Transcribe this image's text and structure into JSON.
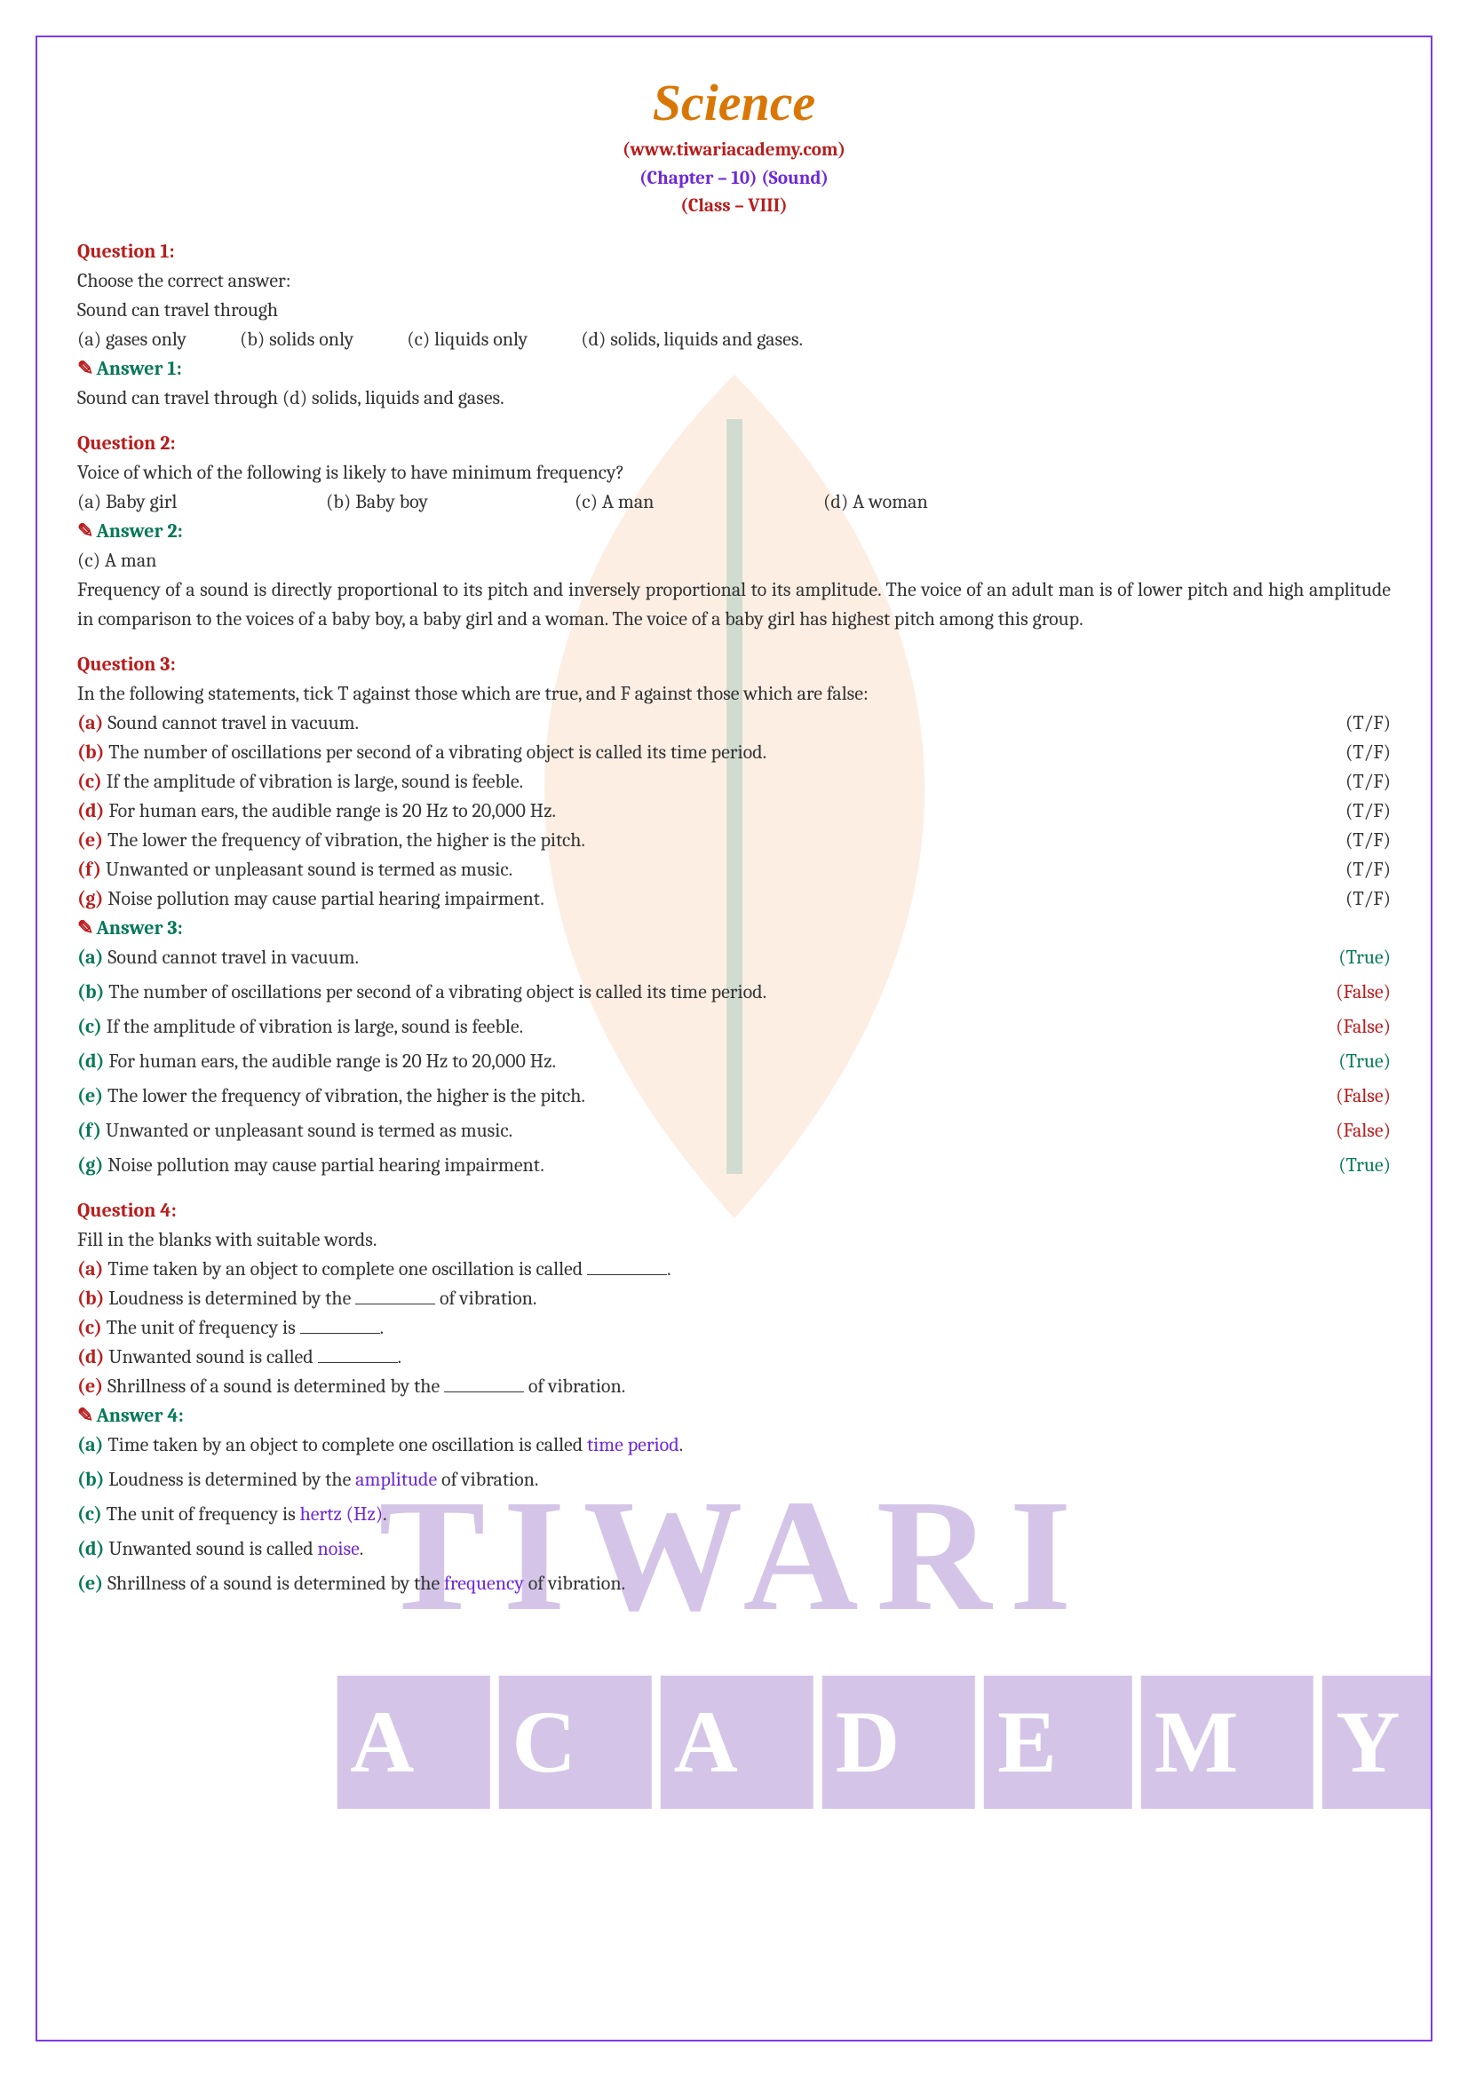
{
  "header": {
    "title": "Science",
    "site": "(www.tiwariacademy.com)",
    "chapter": "(Chapter – 10) (Sound)",
    "class": "(Class – VIII)"
  },
  "q1": {
    "label": "Question 1:",
    "prompt": "Choose the correct answer:",
    "stem": "Sound can travel through",
    "opts": {
      "a": "(a) gases only",
      "b": "(b) solids only",
      "c": "(c) liquids only",
      "d": "(d) solids, liquids and gases."
    },
    "ansLabel": "Answer 1:",
    "ans": "Sound can travel through (d) solids, liquids and gases."
  },
  "q2": {
    "label": "Question 2:",
    "stem": "Voice of which of the following is likely to have minimum frequency?",
    "opts": {
      "a": "(a) Baby girl",
      "b": "(b) Baby boy",
      "c": "(c) A man",
      "d": "(d) A woman"
    },
    "ansLabel": "Answer 2:",
    "ans1": "(c) A man",
    "ans2": "Frequency of a sound is directly proportional to its pitch and inversely proportional to its amplitude. The voice of an adult man is of lower pitch and high amplitude in comparison to the voices of a baby boy, a baby girl and a woman. The voice of a baby girl has highest pitch among this group."
  },
  "q3": {
    "label": "Question 3:",
    "stem": "In the following statements, tick T against those which are true, and F against those which are false:",
    "items": [
      {
        "l": "(a)",
        "t": " Sound cannot travel in vacuum.",
        "tf": "(T/F)",
        "ans": "(True)",
        "cls": "true"
      },
      {
        "l": "(b)",
        "t": " The number of oscillations per second of a vibrating object is called its time period.",
        "tf": "(T/F)",
        "ans": "(False)",
        "cls": "false"
      },
      {
        "l": "(c)",
        "t": " If the amplitude of vibration is large, sound is feeble.",
        "tf": "(T/F)",
        "ans": "(False)",
        "cls": "false"
      },
      {
        "l": "(d)",
        "t": " For human ears, the audible range is 20 Hz to 20,000 Hz.",
        "tf": "(T/F)",
        "ans": "(True)",
        "cls": "true"
      },
      {
        "l": "(e)",
        "t": " The lower the frequency of vibration, the higher is the pitch.",
        "tf": "(T/F)",
        "ans": "(False)",
        "cls": "false"
      },
      {
        "l": "(f)",
        "t": " Unwanted or unpleasant sound is termed as music.",
        "tf": "(T/F)",
        "ans": "(False)",
        "cls": "false"
      },
      {
        "l": "(g)",
        "t": " Noise pollution may cause partial hearing impairment.",
        "tf": "(T/F)",
        "ans": "(True)",
        "cls": "true"
      }
    ],
    "ansLabel": "Answer 3:"
  },
  "q4": {
    "label": "Question 4:",
    "stem": "Fill in the blanks with suitable words.",
    "items": [
      {
        "l": "(a)",
        "pre": " Time taken by an object to complete one oscillation is called ",
        "post": ".",
        "fill": "time period"
      },
      {
        "l": "(b)",
        "pre": " Loudness is determined by the ",
        "post": " of vibration.",
        "fill": "amplitude"
      },
      {
        "l": "(c)",
        "pre": " The unit of frequency is ",
        "post": ".",
        "fill": "hertz (Hz)"
      },
      {
        "l": "(d)",
        "pre": " Unwanted sound is called ",
        "post": ".",
        "fill": "noise"
      },
      {
        "l": "(e)",
        "pre": " Shrillness of a sound is determined by the ",
        "post": " of vibration.",
        "fill": "frequency"
      }
    ],
    "ansLabel": "Answer 4:"
  },
  "wm": {
    "t1": "TIWARI",
    "t2": "ACADEMY"
  }
}
